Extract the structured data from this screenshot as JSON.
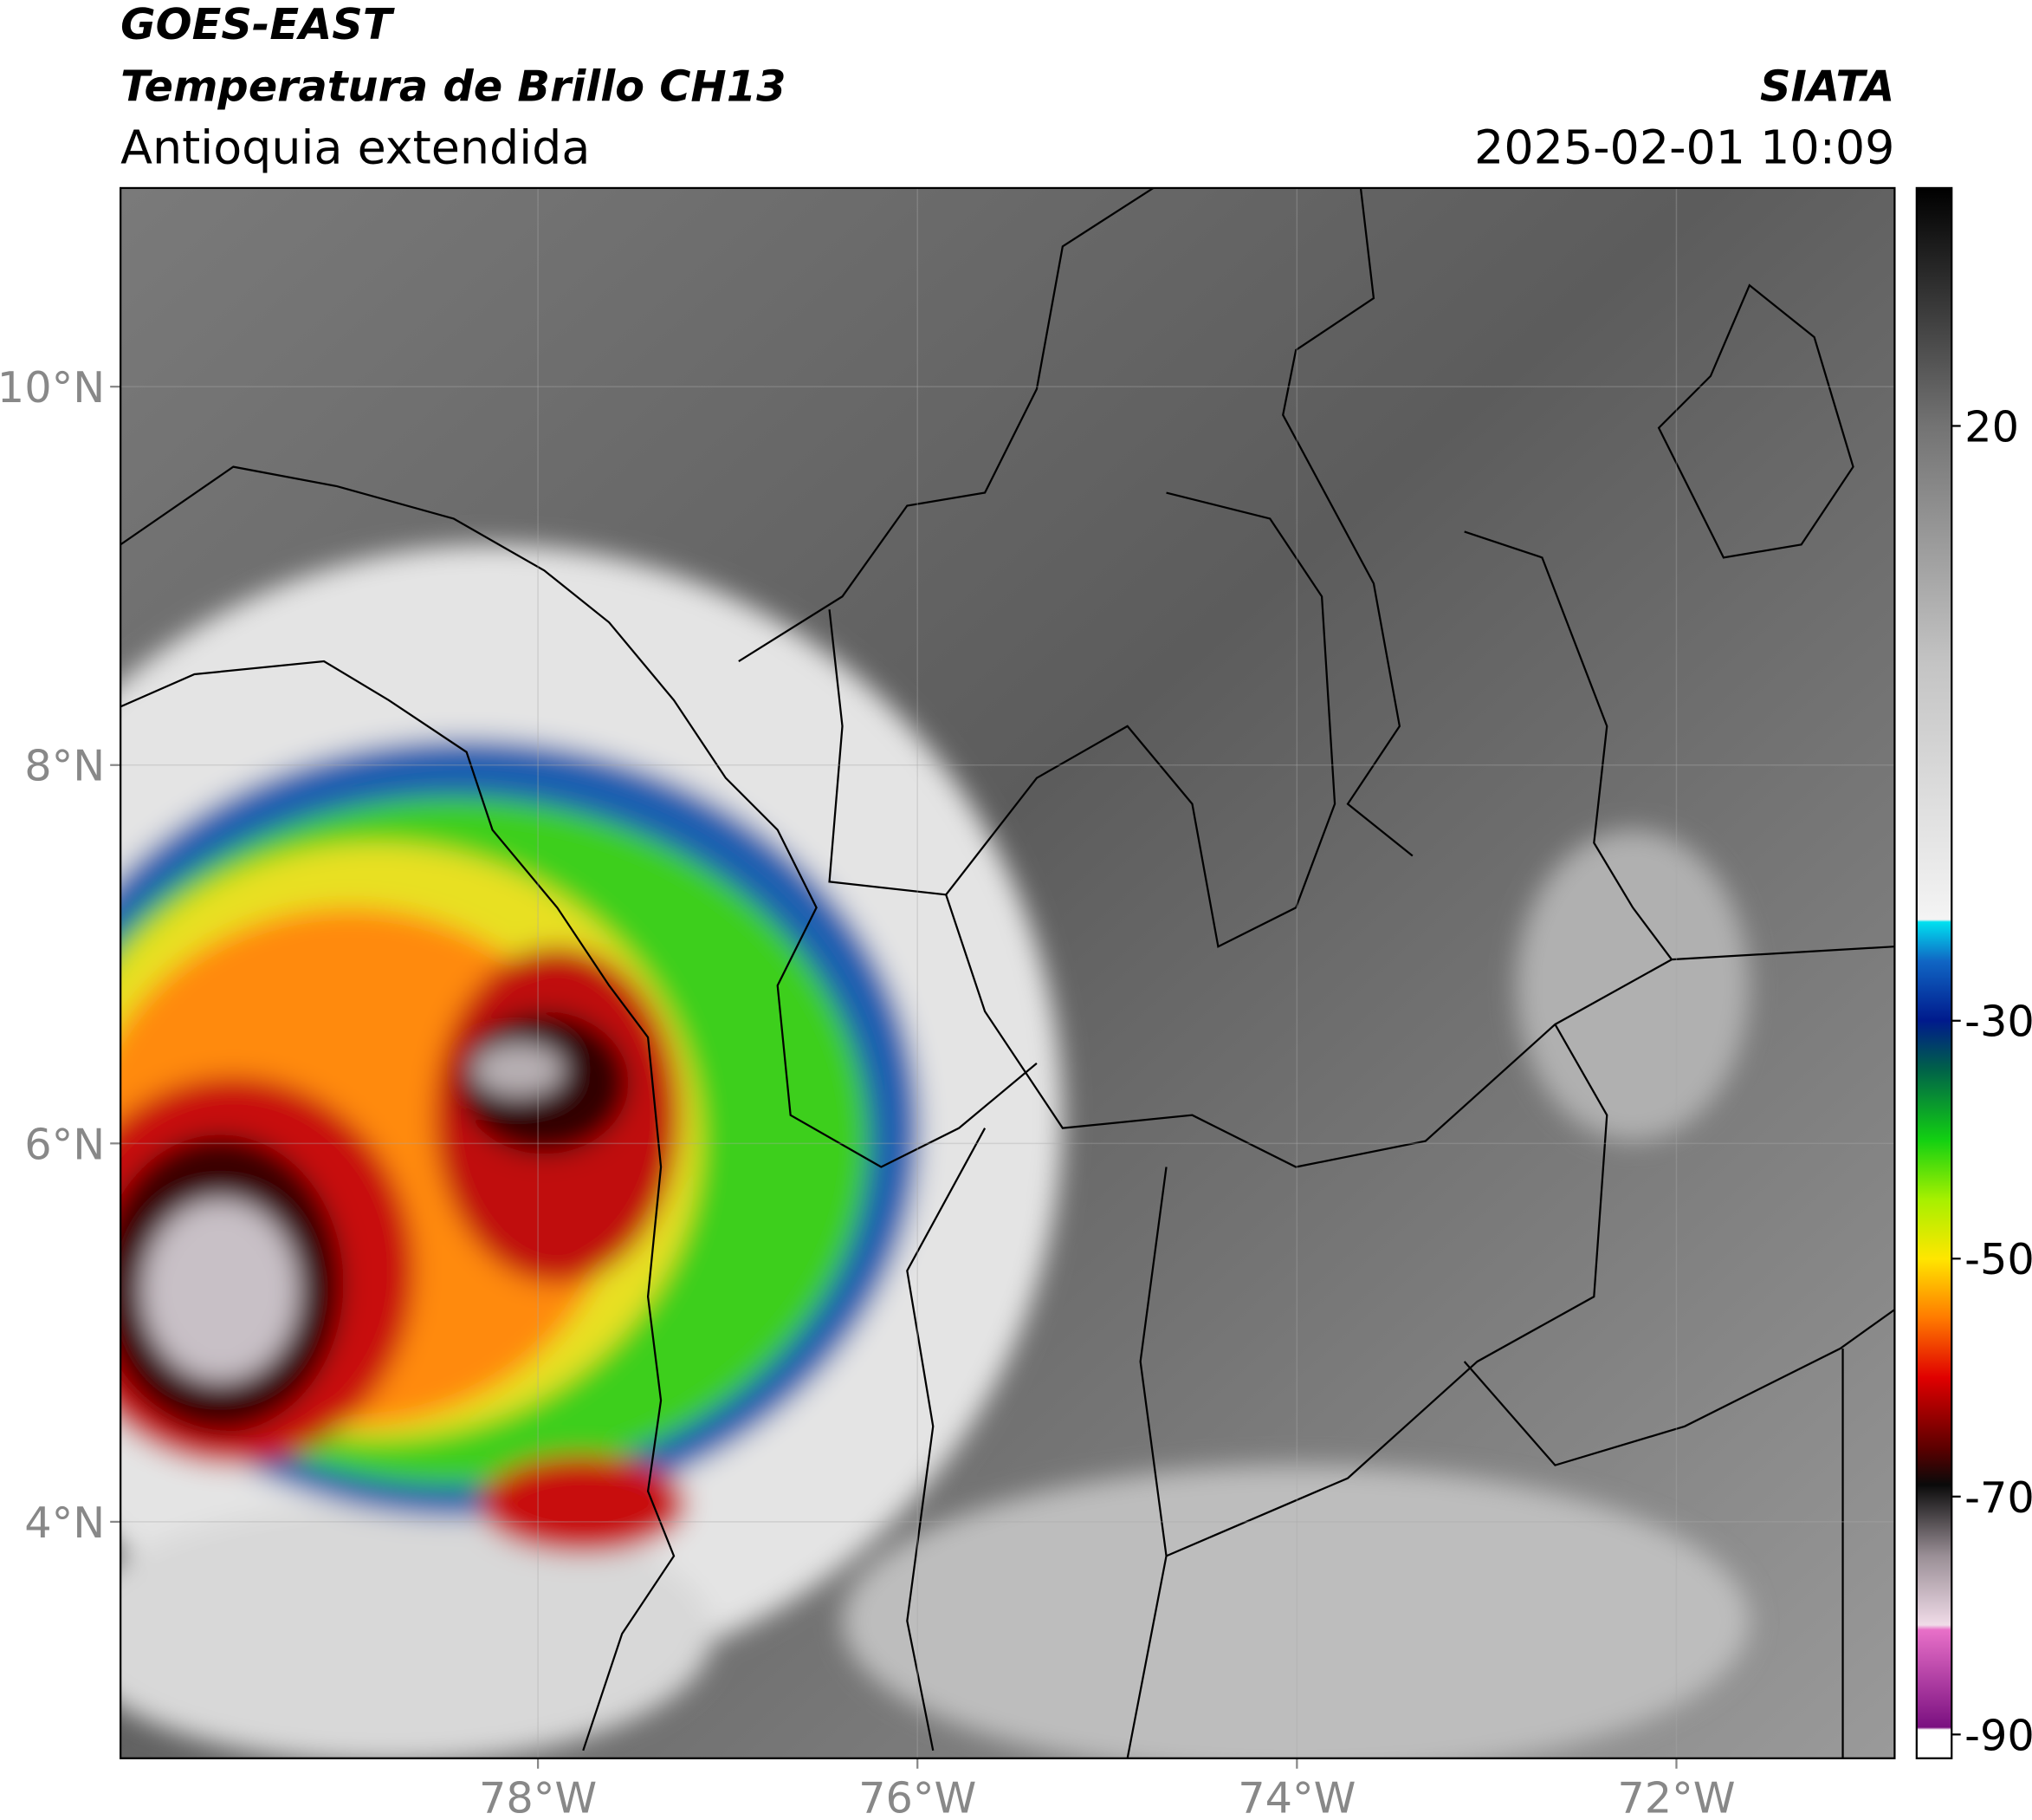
{
  "header": {
    "title": "GOES-EAST",
    "subtitle": "Temperatura de Brillo CH13",
    "region": "Antioquia extendida",
    "source": "SIATA",
    "datetime": "2025-02-01 10:09"
  },
  "map": {
    "xlim": [
      -80.2,
      -70.85
    ],
    "ylim": [
      2.75,
      11.05
    ],
    "xticks": [
      {
        "value": -78,
        "label": "78°W"
      },
      {
        "value": -76,
        "label": "76°W"
      },
      {
        "value": -74,
        "label": "74°W"
      },
      {
        "value": -72,
        "label": "72°W"
      }
    ],
    "yticks": [
      {
        "value": 4,
        "label": "4°N"
      },
      {
        "value": 6,
        "label": "6°N"
      },
      {
        "value": 8,
        "label": "8°N"
      },
      {
        "value": 10,
        "label": "10°N"
      }
    ],
    "grid": true
  },
  "colorbar": {
    "lim": [
      -92,
      40
    ],
    "ticks": [
      20,
      -30,
      -50,
      -70,
      -90
    ],
    "stops": [
      {
        "value": -92,
        "color": "#ffffff"
      },
      {
        "value": -89.6,
        "color": "#ffffff"
      },
      {
        "value": -89.4,
        "color": "#7a1080"
      },
      {
        "value": -81.2,
        "color": "#e870c8"
      },
      {
        "value": -80.8,
        "color": "#f0dbe8"
      },
      {
        "value": -75,
        "color": "#9a8f96"
      },
      {
        "value": -69,
        "color": "#0a0a0a"
      },
      {
        "value": -66,
        "color": "#5a0000"
      },
      {
        "value": -60,
        "color": "#e00000"
      },
      {
        "value": -55,
        "color": "#ff7a00"
      },
      {
        "value": -50,
        "color": "#ffe600"
      },
      {
        "value": -45,
        "color": "#a6f000"
      },
      {
        "value": -40,
        "color": "#12d012"
      },
      {
        "value": -34,
        "color": "#00604a"
      },
      {
        "value": -30,
        "color": "#001a8c"
      },
      {
        "value": -25,
        "color": "#1066c4"
      },
      {
        "value": -21.7,
        "color": "#00e0f0"
      },
      {
        "value": -21.5,
        "color": "#f4f4f4"
      },
      {
        "value": 0,
        "color": "#c4c4c4"
      },
      {
        "value": 20,
        "color": "#737373"
      },
      {
        "value": 40,
        "color": "#000000"
      }
    ]
  }
}
